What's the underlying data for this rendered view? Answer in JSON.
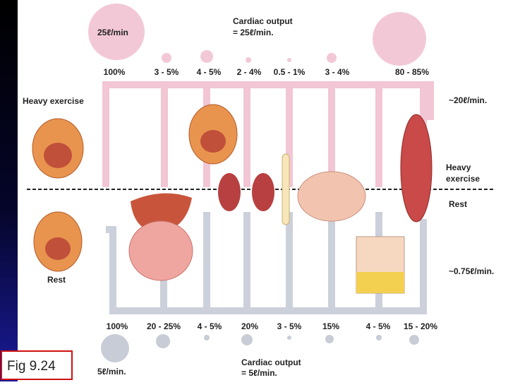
{
  "top": {
    "rate": "25ℓ/min",
    "cardiac_output": "Cardiac output",
    "cardiac_output_value": "= 25ℓ/min.",
    "percentages": [
      "100%",
      "3 - 5%",
      "4 - 5%",
      "2 - 4%",
      "0.5 - 1%",
      "3 - 4%",
      "80 - 85%"
    ]
  },
  "labels": {
    "heavy_exercise_left": "Heavy exercise",
    "heavy_rate": "~20ℓ/min.",
    "heavy_exercise_right": "Heavy exercise",
    "rest_right": "Rest",
    "rest_left": "Rest",
    "rest_rate": "~0.75ℓ/min."
  },
  "bottom": {
    "percentages": [
      "100%",
      "20 - 25%",
      "4 - 5%",
      "20%",
      "3 - 5%",
      "15%",
      "4 - 5%",
      "15 - 20%"
    ],
    "rate": "5ℓ/min.",
    "cardiac_output": "Cardiac output",
    "cardiac_output_value": "= 5ℓ/min."
  },
  "caption": "Fig 9.24"
}
